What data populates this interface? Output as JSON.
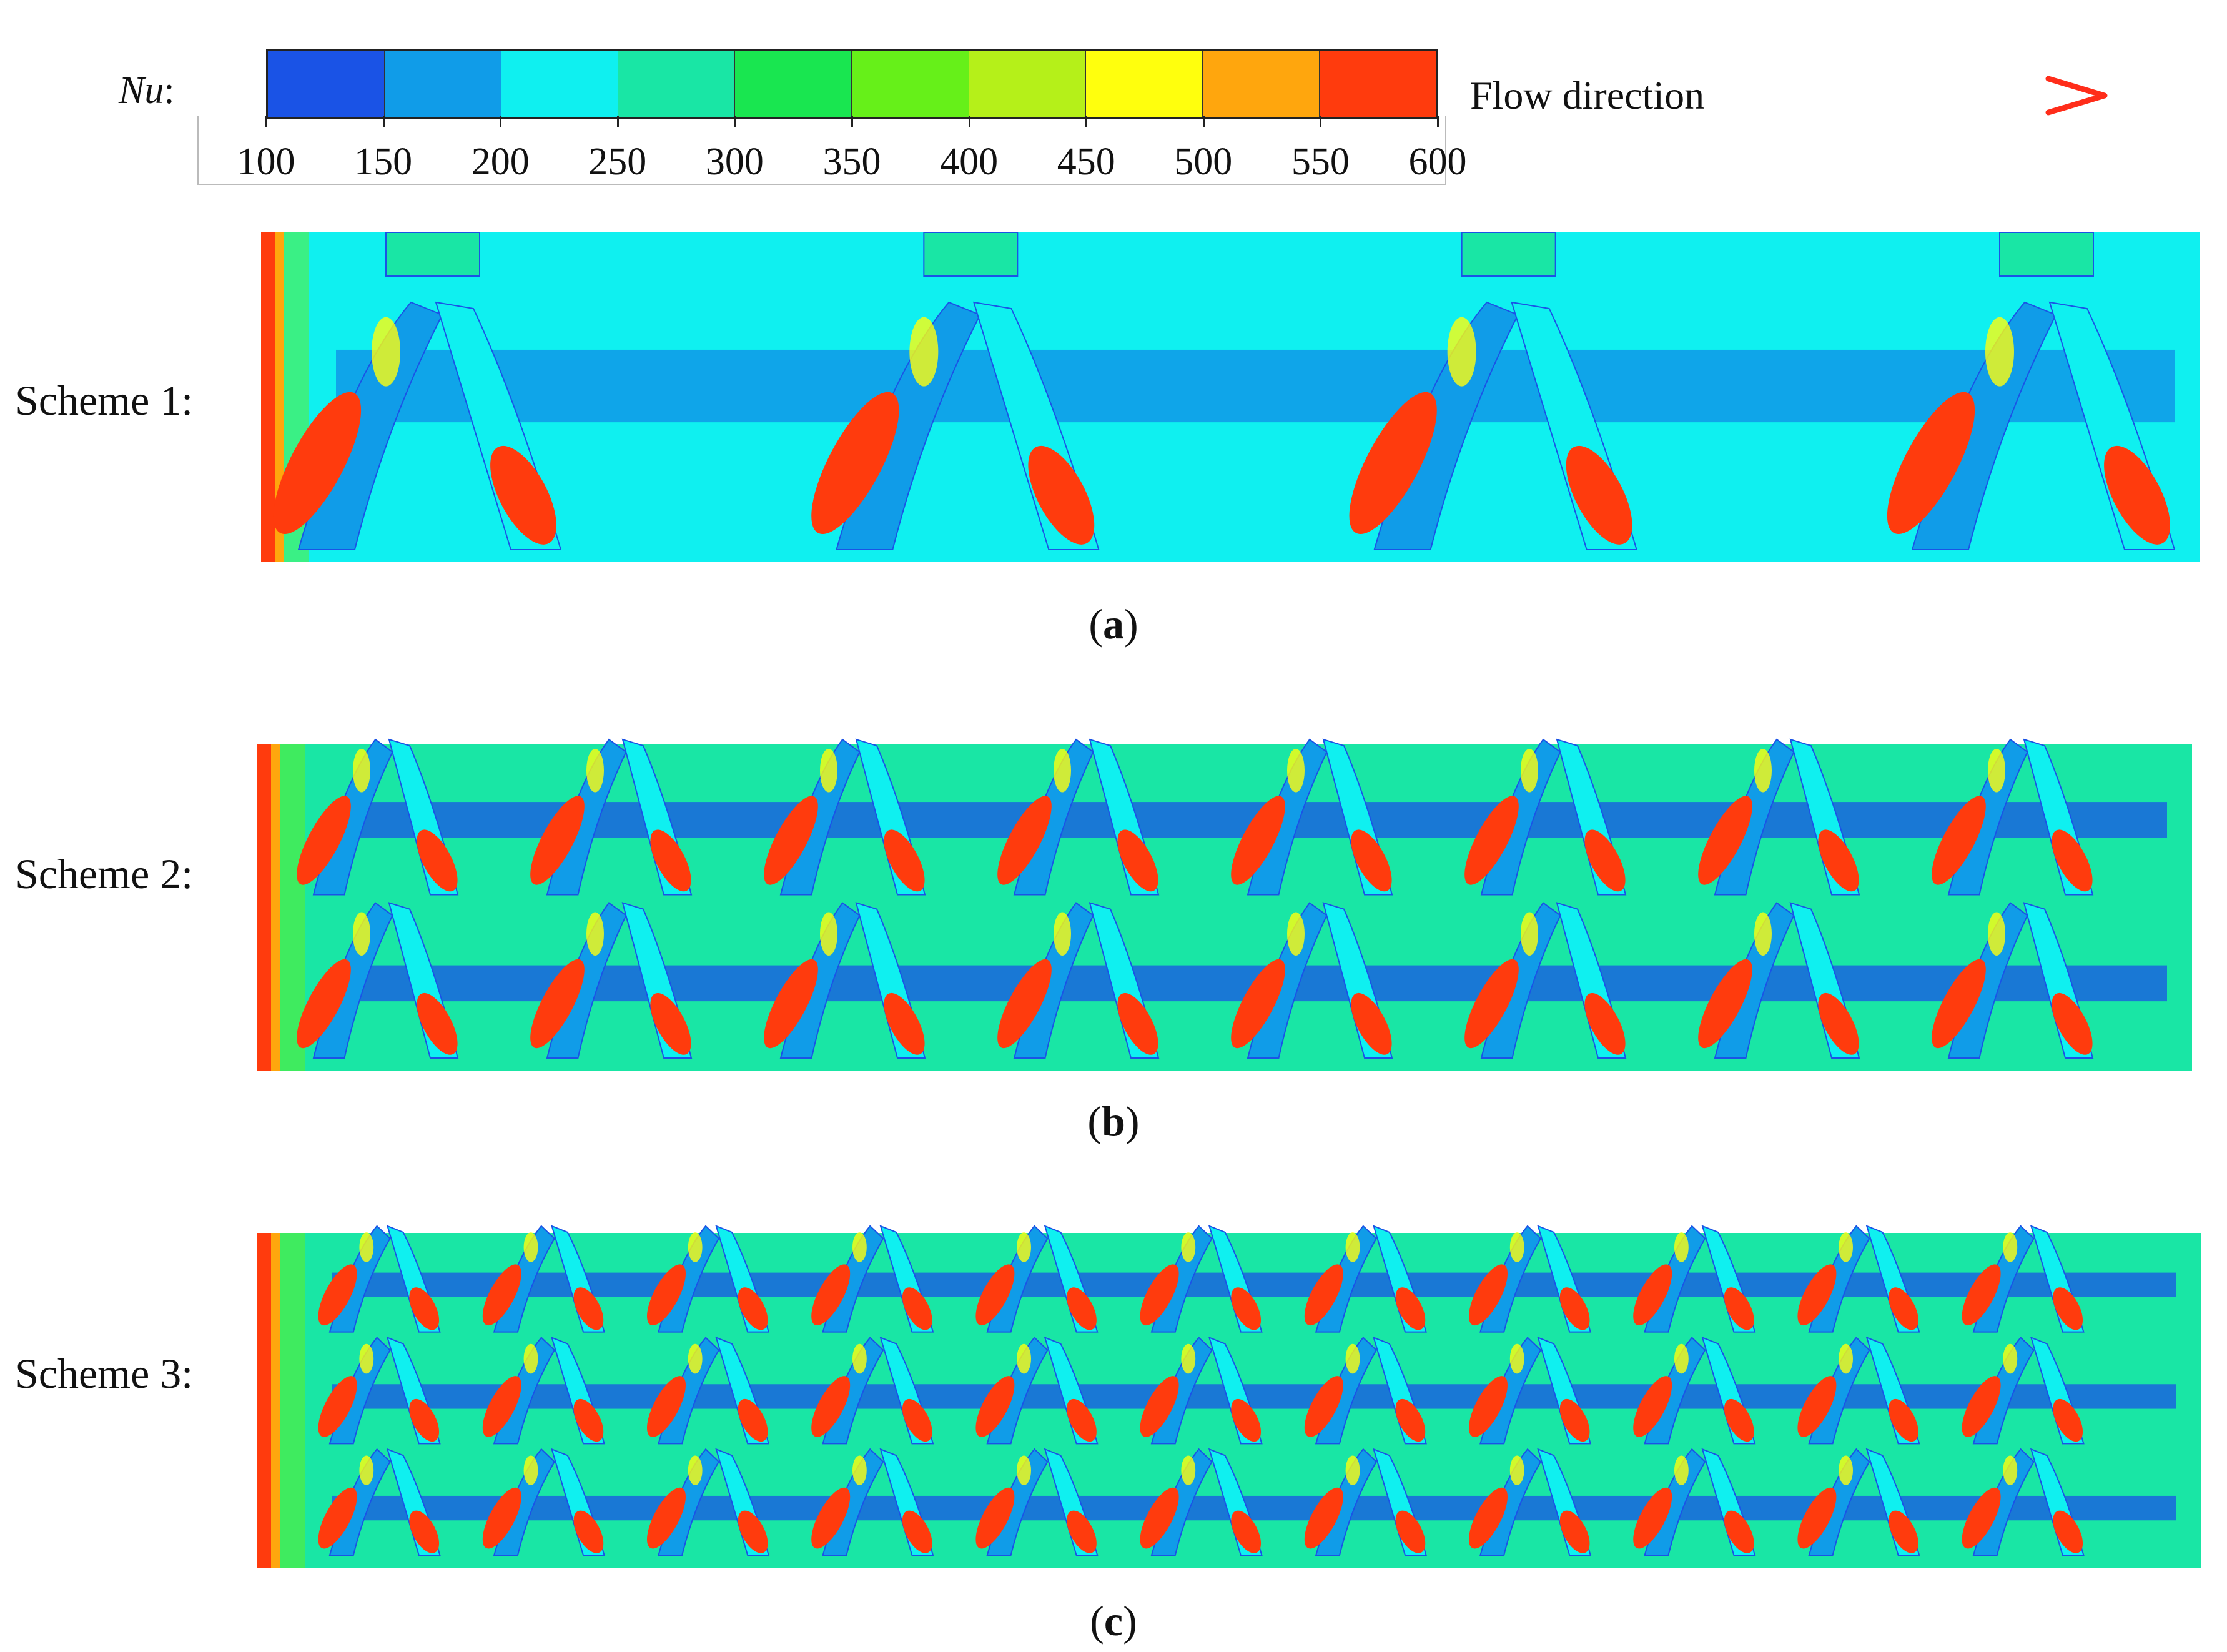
{
  "legend": {
    "variable": "Nu",
    "colon": ":",
    "colors": [
      "#1a53e6",
      "#109ce8",
      "#0ff0f0",
      "#19e6a5",
      "#19e650",
      "#66f019",
      "#b5f019",
      "#ffff0d",
      "#ffa60d",
      "#ff3b0d"
    ],
    "ticks": [
      "100",
      "150",
      "200",
      "250",
      "300",
      "350",
      "400",
      "450",
      "500",
      "550",
      "600"
    ]
  },
  "flow": {
    "label": "Flow direction",
    "arrow_gradient": [
      "#1a9a4a",
      "#d8553a",
      "#ff2d1a"
    ]
  },
  "panels": [
    {
      "scheme_label": "Scheme 1:",
      "caption_letter": "a",
      "background": "#0ff0f0",
      "lattice_cells": 4,
      "rows": 1
    },
    {
      "scheme_label": "Scheme 2:",
      "caption_letter": "b",
      "background": "#19e6a5",
      "lattice_cells": 8,
      "rows": 2
    },
    {
      "scheme_label": "Scheme 3:",
      "caption_letter": "c",
      "background": "#19e6a5",
      "lattice_cells": 11,
      "rows": 3
    }
  ],
  "caption_open": "(",
  "caption_close": ")"
}
